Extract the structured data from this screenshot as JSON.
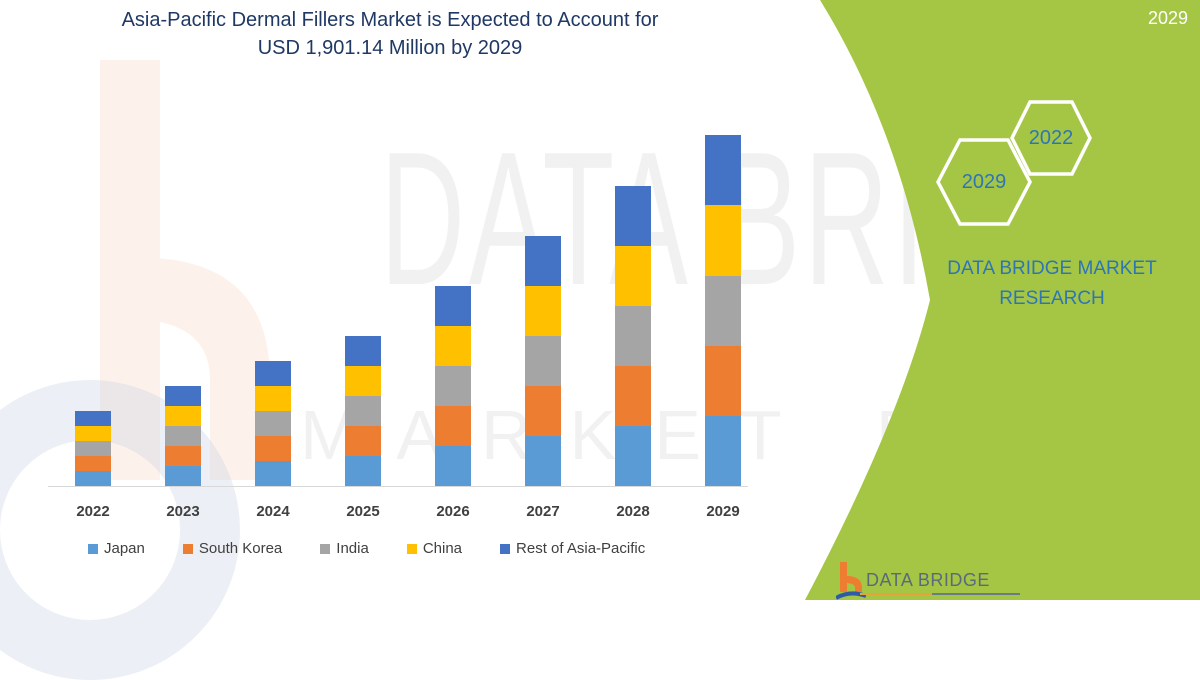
{
  "header": {
    "title_line1": "Asia-Pacific Dermal Fillers Market is Expected to Account for",
    "title_line2": "USD 1,901.14 Million by 2029",
    "corner_year": "2029"
  },
  "sidebar": {
    "hex_badges": [
      {
        "label": "2022"
      },
      {
        "label": "2029"
      }
    ],
    "brand_line1": "DATA BRIDGE MARKET",
    "brand_line2": "RESEARCH",
    "logo_text": "DATA BRIDGE",
    "background_color": "#a5c645"
  },
  "watermark": {
    "text_top": "DATA BRIDGE",
    "text_bottom": "MARKET RESEARCH"
  },
  "colors": {
    "Japan": "#5b9bd5",
    "South Korea": "#ed7d31",
    "India": "#a5a5a5",
    "China": "#ffc000",
    "Rest of Asia-Pacific": "#4472c4"
  },
  "chart_data": {
    "type": "bar",
    "stacked": true,
    "title": "Asia-Pacific Dermal Fillers Market is Expected to Account for USD 1,901.14 Million by 2029",
    "xlabel": "",
    "ylabel": "",
    "grid": false,
    "y_axis_visible": false,
    "legend_position": "bottom",
    "categories": [
      "2022",
      "2023",
      "2024",
      "2025",
      "2026",
      "2027",
      "2028",
      "2029"
    ],
    "series": [
      {
        "name": "Japan",
        "color": "#5b9bd5",
        "values": [
          81,
          108,
          135,
          162,
          217,
          271,
          325,
          380
        ]
      },
      {
        "name": "South Korea",
        "color": "#ed7d31",
        "values": [
          81,
          108,
          135,
          162,
          217,
          271,
          325,
          380
        ]
      },
      {
        "name": "India",
        "color": "#a5a5a5",
        "values": [
          81,
          108,
          135,
          162,
          217,
          271,
          325,
          380
        ]
      },
      {
        "name": "China",
        "color": "#ffc000",
        "values": [
          81,
          108,
          135,
          162,
          217,
          271,
          325,
          380
        ]
      },
      {
        "name": "Rest of Asia-Pacific",
        "color": "#4472c4",
        "values": [
          81,
          108,
          135,
          162,
          217,
          271,
          325,
          381
        ]
      }
    ],
    "totals_estimated": [
      405,
      540,
      675,
      810,
      1085,
      1355,
      1625,
      1901.14
    ],
    "units": "USD Million (estimated from bar heights; no axis shown)",
    "annotation": "USD 1,901.14 Million by 2029"
  }
}
